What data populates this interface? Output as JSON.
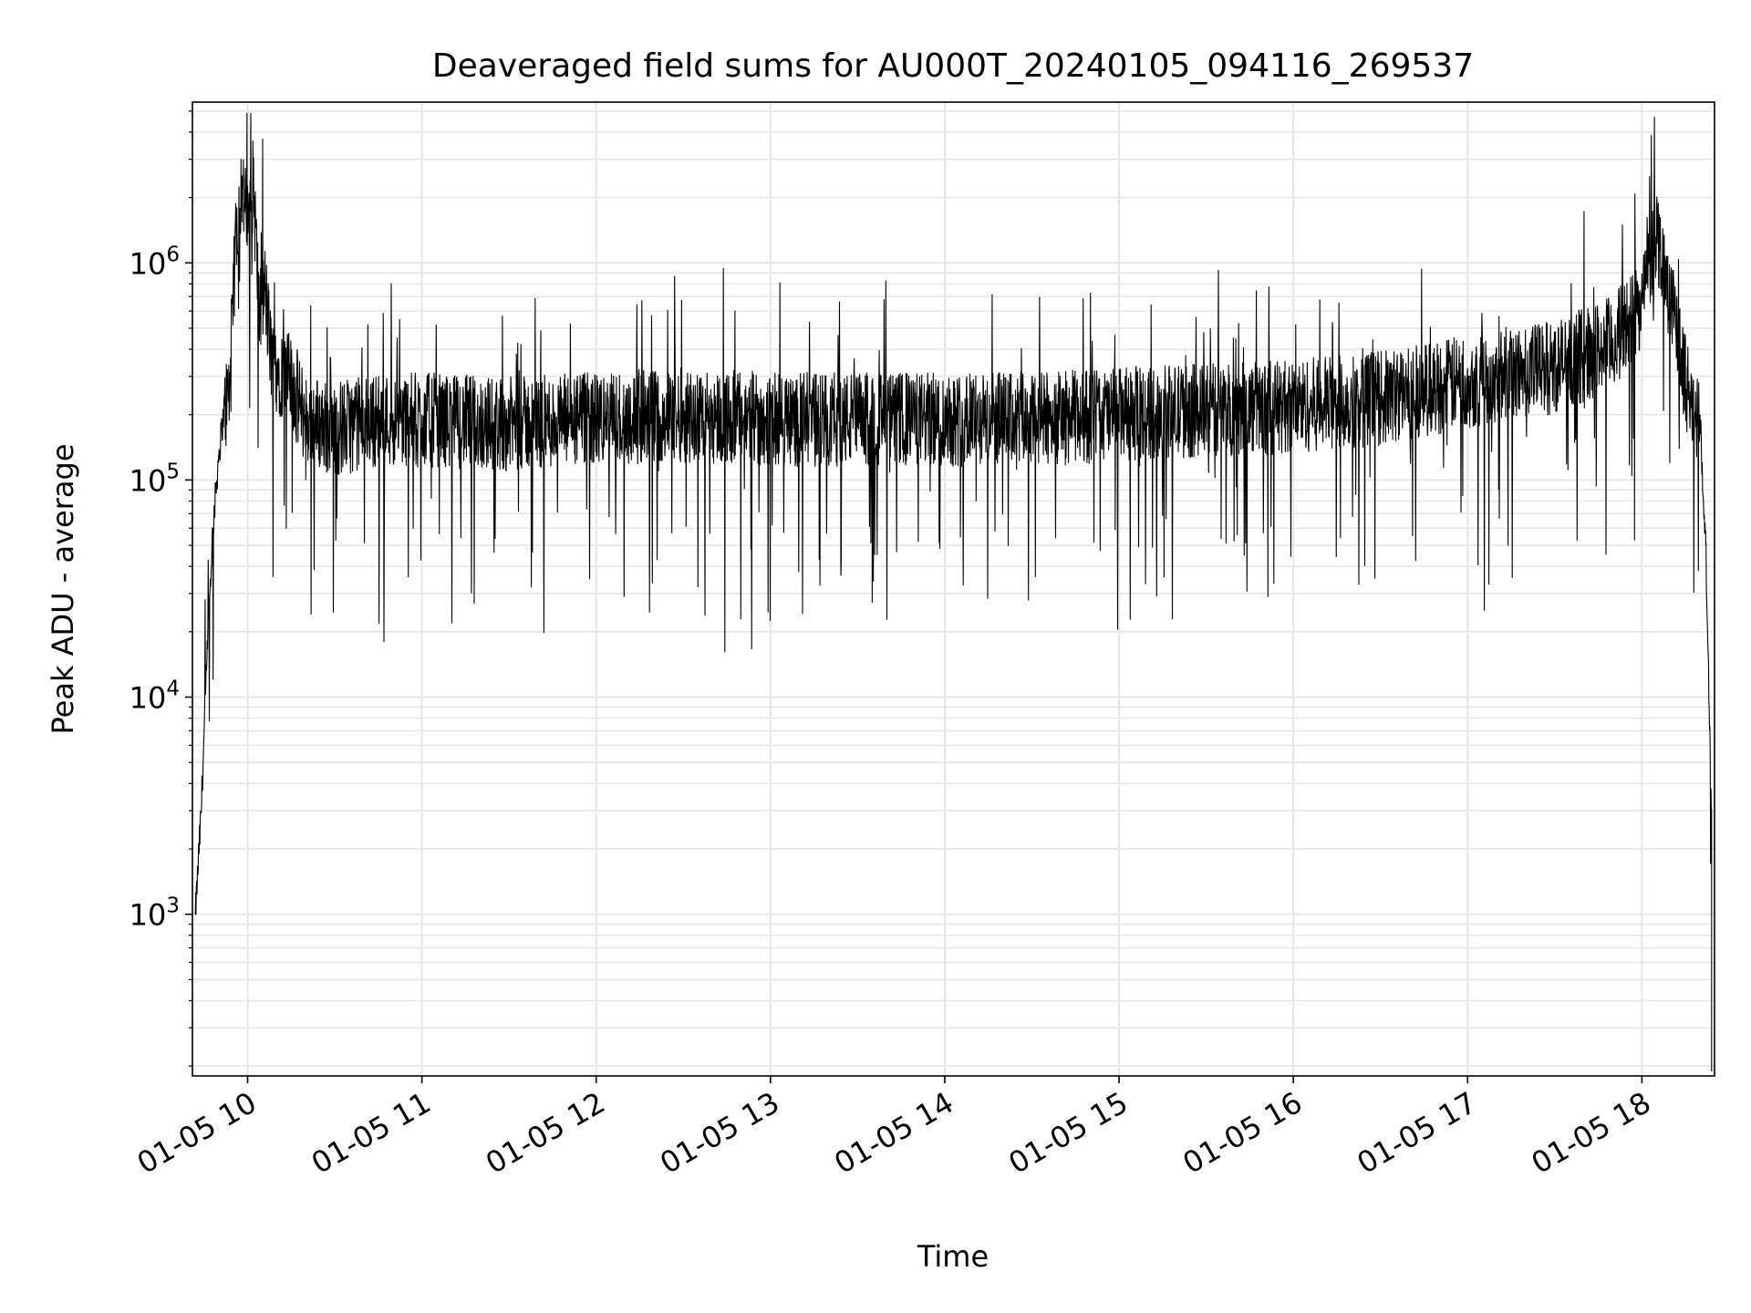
{
  "chart_data": {
    "type": "line",
    "title": "Deaveraged field sums for AU000T_20240105_094116_269537",
    "xlabel": "Time",
    "ylabel": "Peak ADU - average",
    "yscale": "log",
    "grid": true,
    "line_color": "#000000",
    "grid_color": "#e6e6e6",
    "xlim": [
      "01-05 09:41",
      "01-05 18:25"
    ],
    "ylim": [
      180,
      5500000
    ],
    "x_ticks": [
      "01-05 10",
      "01-05 11",
      "01-05 12",
      "01-05 13",
      "01-05 14",
      "01-05 15",
      "01-05 16",
      "01-05 17",
      "01-05 18"
    ],
    "y_ticks": [
      {
        "base": "10",
        "exp": "3",
        "value": 1000
      },
      {
        "base": "10",
        "exp": "4",
        "value": 10000
      },
      {
        "base": "10",
        "exp": "5",
        "value": 100000
      },
      {
        "base": "10",
        "exp": "6",
        "value": 1000000
      }
    ],
    "series": [
      {
        "x": [
          "01-05 09:42",
          "01-05 09:44",
          "01-05 09:46",
          "01-05 09:48",
          "01-05 09:50",
          "01-05 09:52",
          "01-05 09:54",
          "01-05 09:56",
          "01-05 09:58",
          "01-05 10:00",
          "01-05 10:02",
          "01-05 10:04",
          "01-05 10:06",
          "01-05 10:08",
          "01-05 10:10",
          "01-05 10:15",
          "01-05 10:20",
          "01-05 10:30",
          "01-05 10:45",
          "01-05 11:00",
          "01-05 11:30",
          "01-05 12:00",
          "01-05 12:30",
          "01-05 13:00",
          "01-05 13:30",
          "01-05 14:00",
          "01-05 14:30",
          "01-05 15:00",
          "01-05 15:30",
          "01-05 16:00",
          "01-05 16:30",
          "01-05 17:00",
          "01-05 17:30",
          "01-05 17:50",
          "01-05 18:00",
          "01-05 18:05",
          "01-05 18:10",
          "01-05 18:15",
          "01-05 18:20",
          "01-05 18:22",
          "01-05 18:24"
        ],
        "y": [
          1000,
          3000,
          15000,
          60000,
          130000,
          220000,
          280000,
          1500000,
          2500000,
          1500000,
          2500000,
          600000,
          800000,
          400000,
          350000,
          300000,
          200000,
          180000,
          200000,
          200000,
          190000,
          200000,
          210000,
          200000,
          200000,
          200000,
          200000,
          210000,
          220000,
          230000,
          250000,
          300000,
          350000,
          450000,
          700000,
          1500000,
          700000,
          300000,
          200000,
          50000,
          3000
        ]
      }
    ]
  }
}
